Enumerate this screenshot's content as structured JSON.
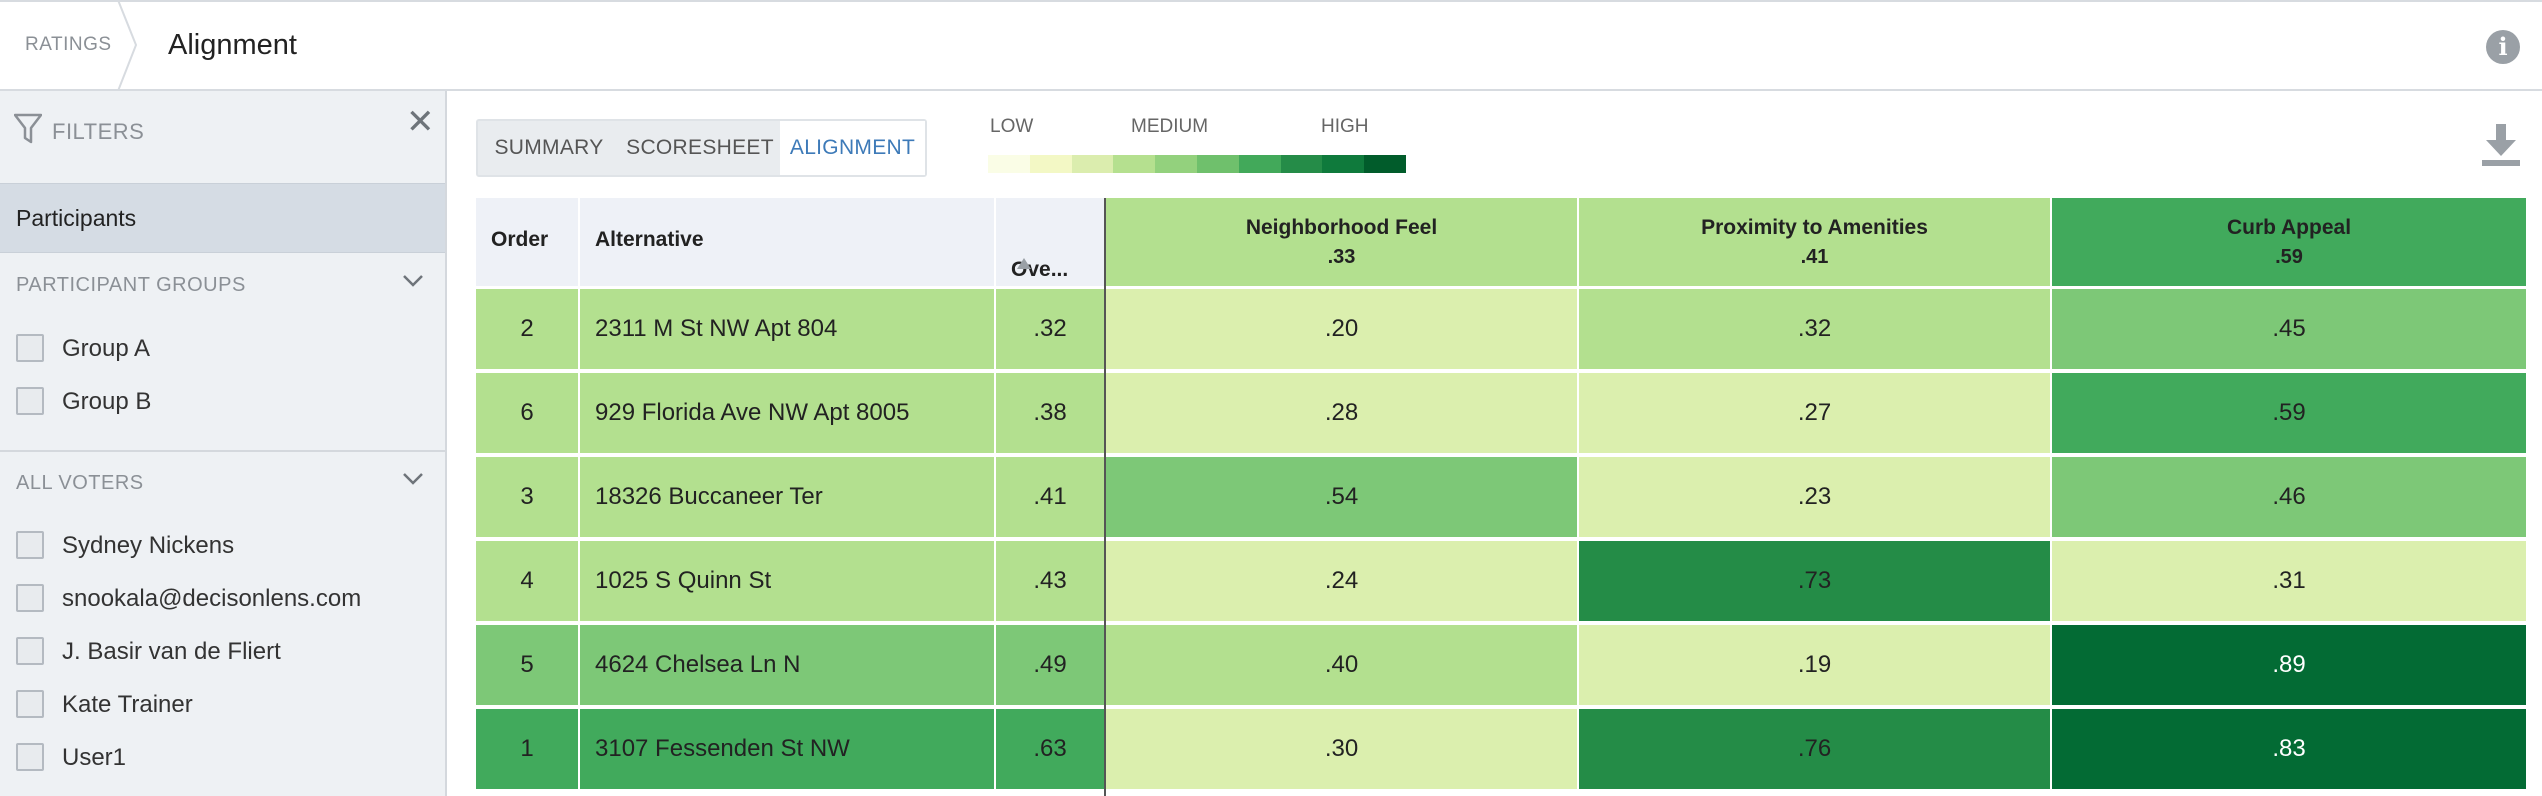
{
  "header": {
    "breadcrumb": "RATINGS",
    "title": "Alignment"
  },
  "sidebar": {
    "filters_label": "FILTERS",
    "participants_tab": "Participants",
    "participant_groups": {
      "label": "PARTICIPANT GROUPS",
      "items": [
        "Group A",
        "Group B"
      ]
    },
    "all_voters": {
      "label": "ALL VOTERS",
      "items": [
        "Sydney Nickens",
        "snookala@decisonlens.com",
        "J. Basir van de Fliert",
        "Kate Trainer",
        "User1"
      ]
    }
  },
  "tabs": [
    {
      "label": "SUMMARY",
      "active": false
    },
    {
      "label": "SCORESHEET",
      "active": false
    },
    {
      "label": "ALIGNMENT",
      "active": true
    }
  ],
  "legend": {
    "low": "LOW",
    "medium": "MEDIUM",
    "high": "HIGH",
    "colors": [
      "#fafde6",
      "#f3f8c5",
      "#dbedae",
      "#b5e08f",
      "#93d17d",
      "#6fc06c",
      "#42a95a",
      "#258c48",
      "#0f7a3c",
      "#015c2b"
    ]
  },
  "table": {
    "headers": {
      "order": "Order",
      "alternative": "Alternative",
      "overall": "Ove..."
    },
    "criteria": [
      {
        "name": "Neighborhood Feel",
        "weight": ".33",
        "color": "#b3e08f"
      },
      {
        "name": "Proximity to Amenities",
        "weight": ".41",
        "color": "#b3e08f"
      },
      {
        "name": "Curb Appeal",
        "weight": ".59",
        "color": "#41aa5c"
      }
    ],
    "rows": [
      {
        "order": "2",
        "alternative": "2311 M St NW Apt 804",
        "overall": ".32",
        "row_color": "#b3e08f",
        "scores": [
          {
            "v": ".20",
            "c": "#dbefae"
          },
          {
            "v": ".32",
            "c": "#b3e08f"
          },
          {
            "v": ".45",
            "c": "#7dc877"
          }
        ]
      },
      {
        "order": "6",
        "alternative": "929 Florida Ave NW Apt 8005",
        "overall": ".38",
        "row_color": "#b3e08f",
        "scores": [
          {
            "v": ".28",
            "c": "#dbefae"
          },
          {
            "v": ".27",
            "c": "#dbefae"
          },
          {
            "v": ".59",
            "c": "#41aa5c"
          }
        ]
      },
      {
        "order": "3",
        "alternative": "18326 Buccaneer Ter",
        "overall": ".41",
        "row_color": "#b3e08f",
        "scores": [
          {
            "v": ".54",
            "c": "#7dc877"
          },
          {
            "v": ".23",
            "c": "#dbefae"
          },
          {
            "v": ".46",
            "c": "#7dc877"
          }
        ]
      },
      {
        "order": "4",
        "alternative": "1025 S Quinn St",
        "overall": ".43",
        "row_color": "#b3e08f",
        "scores": [
          {
            "v": ".24",
            "c": "#dbefae"
          },
          {
            "v": ".73",
            "c": "#248c47"
          },
          {
            "v": ".31",
            "c": "#dbefae"
          }
        ]
      },
      {
        "order": "5",
        "alternative": "4624 Chelsea Ln N",
        "overall": ".49",
        "row_color": "#7dc877",
        "scores": [
          {
            "v": ".40",
            "c": "#b3e08f"
          },
          {
            "v": ".19",
            "c": "#dbefae"
          },
          {
            "v": ".89",
            "c": "#036b34"
          }
        ]
      },
      {
        "order": "1",
        "alternative": "3107 Fessenden St NW",
        "overall": ".63",
        "row_color": "#41aa5c",
        "scores": [
          {
            "v": ".30",
            "c": "#dbefae"
          },
          {
            "v": ".76",
            "c": "#248c47"
          },
          {
            "v": ".83",
            "c": "#036b34"
          }
        ]
      }
    ]
  }
}
